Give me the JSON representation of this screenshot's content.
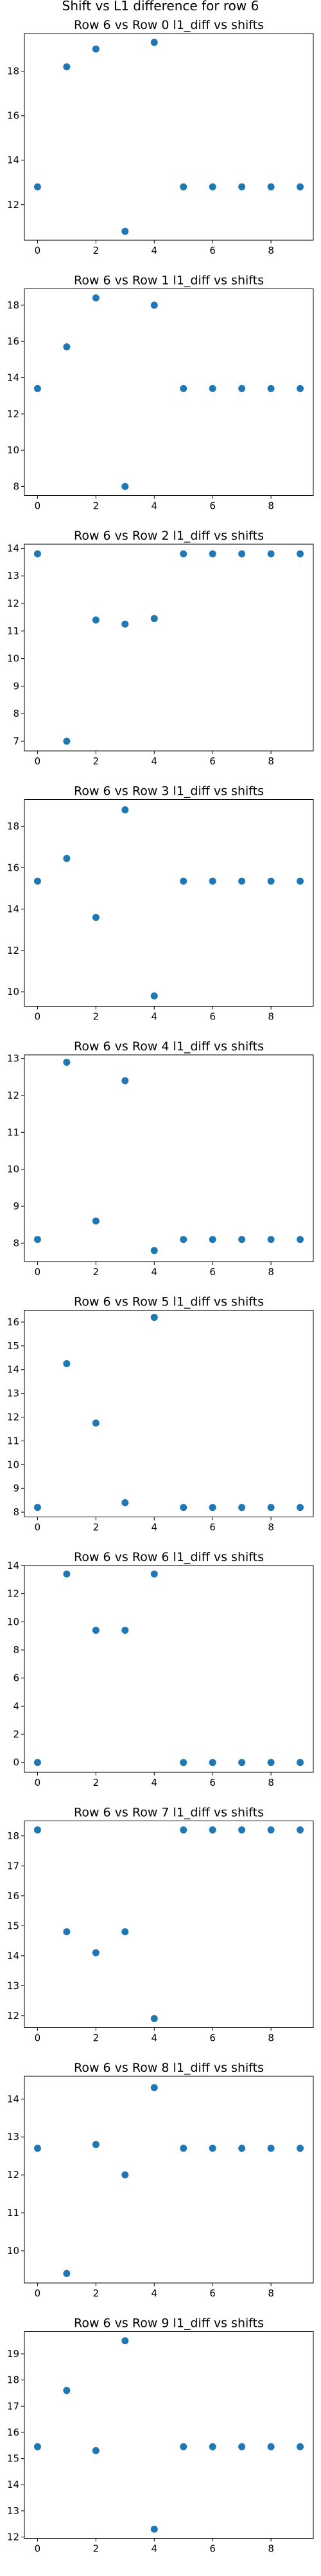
{
  "figure": {
    "suptitle": "Shift vs L1 difference for row 6"
  },
  "style": {
    "marker_color": "#1f77b4",
    "axes_color": "#000000",
    "background": "#ffffff"
  },
  "chart_data": [
    {
      "type": "scatter",
      "title": "Row 6 vs Row 0 l1_diff vs shifts",
      "x": [
        0,
        1,
        2,
        3,
        4,
        5,
        6,
        7,
        8,
        9
      ],
      "y": [
        12.8,
        18.2,
        19.0,
        10.8,
        19.3,
        12.8,
        12.8,
        12.8,
        12.8,
        12.8
      ],
      "xlim": [
        -0.45,
        9.45
      ],
      "ylim": [
        10.4,
        19.7
      ],
      "xticks": [
        0,
        2,
        4,
        6,
        8
      ],
      "yticks": [
        12,
        14,
        16,
        18
      ],
      "xlabel": "",
      "ylabel": ""
    },
    {
      "type": "scatter",
      "title": "Row 6 vs Row 1 l1_diff vs shifts",
      "x": [
        0,
        1,
        2,
        3,
        4,
        5,
        6,
        7,
        8,
        9
      ],
      "y": [
        13.4,
        15.7,
        18.4,
        8.0,
        18.0,
        13.4,
        13.4,
        13.4,
        13.4,
        13.4
      ],
      "xlim": [
        -0.45,
        9.45
      ],
      "ylim": [
        7.5,
        18.9
      ],
      "xticks": [
        0,
        2,
        4,
        6,
        8
      ],
      "yticks": [
        8,
        10,
        12,
        14,
        16,
        18
      ],
      "xlabel": "",
      "ylabel": ""
    },
    {
      "type": "scatter",
      "title": "Row 6 vs Row 2 l1_diff vs shifts",
      "x": [
        0,
        1,
        2,
        3,
        4,
        5,
        6,
        7,
        8,
        9
      ],
      "y": [
        13.8,
        7.0,
        11.4,
        11.25,
        11.45,
        13.8,
        13.8,
        13.8,
        13.8,
        13.8
      ],
      "xlim": [
        -0.45,
        9.45
      ],
      "ylim": [
        6.65,
        14.15
      ],
      "xticks": [
        0,
        2,
        4,
        6,
        8
      ],
      "yticks": [
        7,
        8,
        9,
        10,
        11,
        12,
        13,
        14
      ],
      "xlabel": "",
      "ylabel": ""
    },
    {
      "type": "scatter",
      "title": "Row 6 vs Row 3 l1_diff vs shifts",
      "x": [
        0,
        1,
        2,
        3,
        4,
        5,
        6,
        7,
        8,
        9
      ],
      "y": [
        15.35,
        16.45,
        13.6,
        18.8,
        9.8,
        15.35,
        15.35,
        15.35,
        15.35,
        15.35
      ],
      "xlim": [
        -0.45,
        9.45
      ],
      "ylim": [
        9.3,
        19.3
      ],
      "xticks": [
        0,
        2,
        4,
        6,
        8
      ],
      "yticks": [
        10,
        12,
        14,
        16,
        18
      ],
      "xlabel": "",
      "ylabel": ""
    },
    {
      "type": "scatter",
      "title": "Row 6 vs Row 4 l1_diff vs shifts",
      "x": [
        0,
        1,
        2,
        3,
        4,
        5,
        6,
        7,
        8,
        9
      ],
      "y": [
        8.1,
        12.9,
        8.6,
        12.4,
        7.8,
        8.1,
        8.1,
        8.1,
        8.1,
        8.1
      ],
      "xlim": [
        -0.45,
        9.45
      ],
      "ylim": [
        7.5,
        13.1
      ],
      "xticks": [
        0,
        2,
        4,
        6,
        8
      ],
      "yticks": [
        8,
        9,
        10,
        11,
        12,
        13
      ],
      "xlabel": "",
      "ylabel": ""
    },
    {
      "type": "scatter",
      "title": "Row 6 vs Row 5 l1_diff vs shifts",
      "x": [
        0,
        1,
        2,
        3,
        4,
        5,
        6,
        7,
        8,
        9
      ],
      "y": [
        8.2,
        14.25,
        11.75,
        8.4,
        16.2,
        8.2,
        8.2,
        8.2,
        8.2,
        8.2
      ],
      "xlim": [
        -0.45,
        9.45
      ],
      "ylim": [
        7.8,
        16.5
      ],
      "xticks": [
        0,
        2,
        4,
        6,
        8
      ],
      "yticks": [
        8,
        9,
        10,
        11,
        12,
        13,
        14,
        15,
        16
      ],
      "xlabel": "",
      "ylabel": ""
    },
    {
      "type": "scatter",
      "title": "Row 6 vs Row 6 l1_diff vs shifts",
      "x": [
        0,
        1,
        2,
        3,
        4,
        5,
        6,
        7,
        8,
        9
      ],
      "y": [
        0.0,
        13.4,
        9.4,
        9.4,
        13.4,
        0.0,
        0.0,
        0.0,
        0.0,
        0.0
      ],
      "xlim": [
        -0.45,
        9.45
      ],
      "ylim": [
        -0.7,
        14.0
      ],
      "xticks": [
        0,
        2,
        4,
        6,
        8
      ],
      "yticks": [
        0,
        2,
        4,
        6,
        8,
        10,
        12,
        14
      ],
      "xlabel": "",
      "ylabel": ""
    },
    {
      "type": "scatter",
      "title": "Row 6 vs Row 7 l1_diff vs shifts",
      "x": [
        0,
        1,
        2,
        3,
        4,
        5,
        6,
        7,
        8,
        9
      ],
      "y": [
        18.2,
        14.8,
        14.1,
        14.8,
        11.9,
        18.2,
        18.2,
        18.2,
        18.2,
        18.2
      ],
      "xlim": [
        -0.45,
        9.45
      ],
      "ylim": [
        11.6,
        18.5
      ],
      "xticks": [
        0,
        2,
        4,
        6,
        8
      ],
      "yticks": [
        12,
        13,
        14,
        15,
        16,
        17,
        18
      ],
      "xlabel": "",
      "ylabel": ""
    },
    {
      "type": "scatter",
      "title": "Row 6 vs Row 8 l1_diff vs shifts",
      "x": [
        0,
        1,
        2,
        3,
        4,
        5,
        6,
        7,
        8,
        9
      ],
      "y": [
        12.7,
        9.4,
        12.8,
        12.0,
        14.3,
        12.7,
        12.7,
        12.7,
        12.7,
        12.7
      ],
      "xlim": [
        -0.45,
        9.45
      ],
      "ylim": [
        9.15,
        14.6
      ],
      "xticks": [
        0,
        2,
        4,
        6,
        8
      ],
      "yticks": [
        10,
        11,
        12,
        13,
        14
      ],
      "xlabel": "",
      "ylabel": ""
    },
    {
      "type": "scatter",
      "title": "Row 6 vs Row 9 l1_diff vs shifts",
      "x": [
        0,
        1,
        2,
        3,
        4,
        5,
        6,
        7,
        8,
        9
      ],
      "y": [
        15.45,
        17.6,
        15.3,
        19.5,
        12.3,
        15.45,
        15.45,
        15.45,
        15.45,
        15.45
      ],
      "xlim": [
        -0.45,
        9.45
      ],
      "ylim": [
        11.95,
        19.85
      ],
      "xticks": [
        0,
        2,
        4,
        6,
        8
      ],
      "yticks": [
        12,
        13,
        14,
        15,
        16,
        17,
        18,
        19
      ],
      "xlabel": "",
      "ylabel": ""
    }
  ]
}
